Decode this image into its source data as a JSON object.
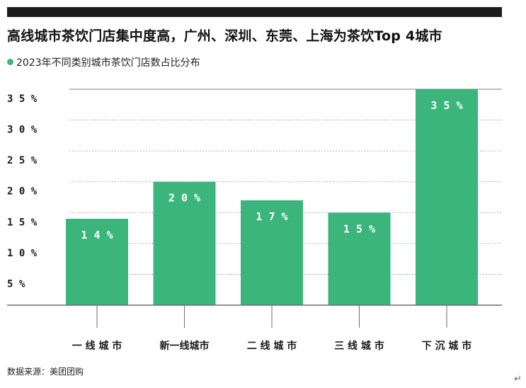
{
  "header": {
    "title": "高线城市茶饮门店集中度高，广州、深圳、东莞、上海为茶饮Top 4城市",
    "subtitle": "2023年不同类别城市茶饮门店数占比分布"
  },
  "footer": {
    "source": "数据来源：美团团购",
    "return_mark": "↵"
  },
  "colors": {
    "bar": "#3cb57c",
    "topbar": "#1b1b1b",
    "grid": "#9a9a9a",
    "axis": "#6e6e6e"
  },
  "chart_data": {
    "type": "bar",
    "categories": [
      "一线城市",
      "新一线城市",
      "二线城市",
      "三线城市",
      "下沉城市"
    ],
    "category_labels": [
      "一 线 城 市",
      "新一线城市",
      "二 线 城 市",
      "三 线 城 市",
      "下 沉 城 市"
    ],
    "values": [
      14,
      20,
      17,
      15,
      35
    ],
    "data_labels": [
      "1 4 %",
      "2 0 %",
      "1 7 %",
      "1 5 %",
      "3 5 %"
    ],
    "unit": "%",
    "ylim": [
      0,
      35
    ],
    "yticks": [
      5,
      10,
      15,
      20,
      25,
      30,
      35
    ],
    "ytick_labels": [
      "5  %",
      "1 0 %",
      "1 5 %",
      "2 0 %",
      "2 5 %",
      "3 0 %",
      "3 5 %"
    ],
    "grid": true,
    "grid_style": "dashed",
    "legend": "none",
    "xlabel": "",
    "ylabel": ""
  }
}
